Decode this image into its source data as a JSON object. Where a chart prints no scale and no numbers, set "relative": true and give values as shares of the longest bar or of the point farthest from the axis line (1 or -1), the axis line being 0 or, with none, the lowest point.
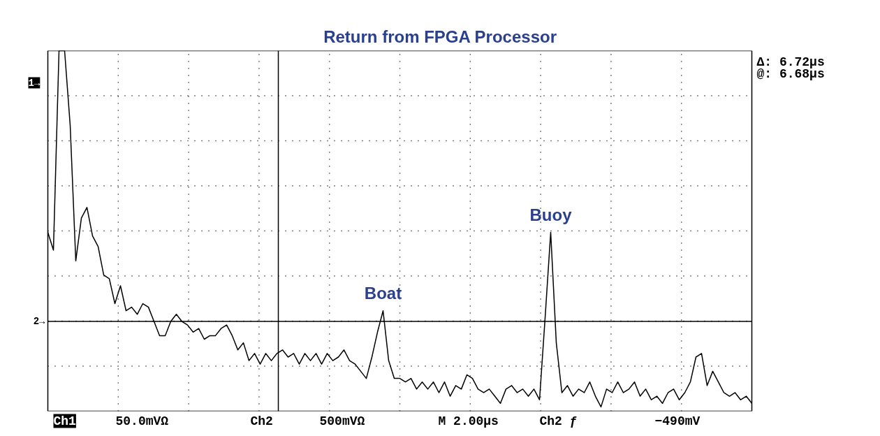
{
  "chart_data": {
    "type": "line",
    "title": "Return from FPGA Processor",
    "relative": true,
    "grid": true,
    "categories": [
      null,
      null,
      null,
      null,
      null,
      null,
      null,
      null,
      null,
      null,
      null,
      null,
      null,
      null,
      null,
      null,
      null,
      null,
      null,
      null,
      null,
      null,
      null,
      null,
      null,
      null,
      null,
      null,
      null,
      null,
      null,
      null,
      null,
      null,
      null,
      null,
      null,
      null,
      null,
      null,
      null,
      null,
      null,
      null,
      null,
      null,
      null,
      null,
      null,
      null,
      null,
      null,
      null,
      null,
      null,
      null,
      null,
      null,
      null,
      null,
      null,
      null,
      null,
      null,
      null,
      null,
      null,
      null,
      null,
      null,
      null,
      null,
      null,
      null,
      null,
      null,
      null,
      null,
      null,
      null,
      null,
      null,
      null,
      null,
      null,
      null,
      null,
      null,
      null,
      null,
      null,
      null,
      null,
      null,
      null,
      null,
      null,
      null,
      null,
      null,
      null,
      null,
      null,
      null,
      null,
      null,
      null,
      null,
      null,
      null,
      null,
      null,
      null,
      null,
      null,
      null,
      null,
      null,
      null,
      null,
      null,
      null,
      null,
      null,
      null,
      null,
      null
    ],
    "series": [
      {
        "color": "#000000",
        "values": [
          0.49,
          0.44,
          1,
          1,
          0.79,
          0.41,
          0.53,
          0.56,
          0.48,
          0.45,
          0.37,
          0.36,
          0.29,
          0.34,
          0.27,
          0.28,
          0.26,
          0.29,
          0.28,
          0.24,
          0.2,
          0.2,
          0.24,
          0.26,
          0.24,
          0.23,
          0.21,
          0.22,
          0.19,
          0.2,
          0.2,
          0.22,
          0.23,
          0.2,
          0.16,
          0.18,
          0.13,
          0.15,
          0.12,
          0.15,
          0.13,
          0.15,
          0.16,
          0.14,
          0.15,
          0.12,
          0.15,
          0.13,
          0.15,
          0.12,
          0.15,
          0.13,
          0.14,
          0.16,
          0.13,
          0.12,
          0.1,
          0.08,
          0.14,
          0.21,
          0.27,
          0.13,
          0.08,
          0.08,
          0.07,
          0.08,
          0.05,
          0.07,
          0.05,
          0.07,
          0.04,
          0.07,
          0.03,
          0.06,
          0.05,
          0.09,
          0.08,
          0.05,
          0.04,
          0.05,
          0.03,
          0.01,
          0.05,
          0.06,
          0.04,
          0.05,
          0.03,
          0.05,
          0.02,
          0.25,
          0.49,
          0.18,
          0.04,
          0.06,
          0.03,
          0.05,
          0.04,
          0.07,
          0.03,
          0,
          0.05,
          0.04,
          0.07,
          0.04,
          0.05,
          0.07,
          0.03,
          0.05,
          0.02,
          0.03,
          0.01,
          0.04,
          0.05,
          0.02,
          0.04,
          0.07,
          0.14,
          0.15,
          0.06,
          0.1,
          0.07,
          0.04,
          0.03,
          0.04,
          0.02,
          0.03,
          0.01
        ]
      }
    ],
    "ref_lines": [
      {
        "axis": "y",
        "value": 0.24,
        "label": "2→"
      }
    ],
    "annotations": [
      {
        "text": "Boat",
        "y": 0.27
      },
      {
        "text": "Buoy",
        "y": 0.49
      },
      "1→",
      "Δ: 6.72µs",
      "@: 6.68µs",
      "Ch1",
      "50.0mVΩ",
      "Ch2",
      "500mVΩ",
      "M 2.00µs",
      "Ch2 ƒ",
      "−490mV"
    ]
  }
}
